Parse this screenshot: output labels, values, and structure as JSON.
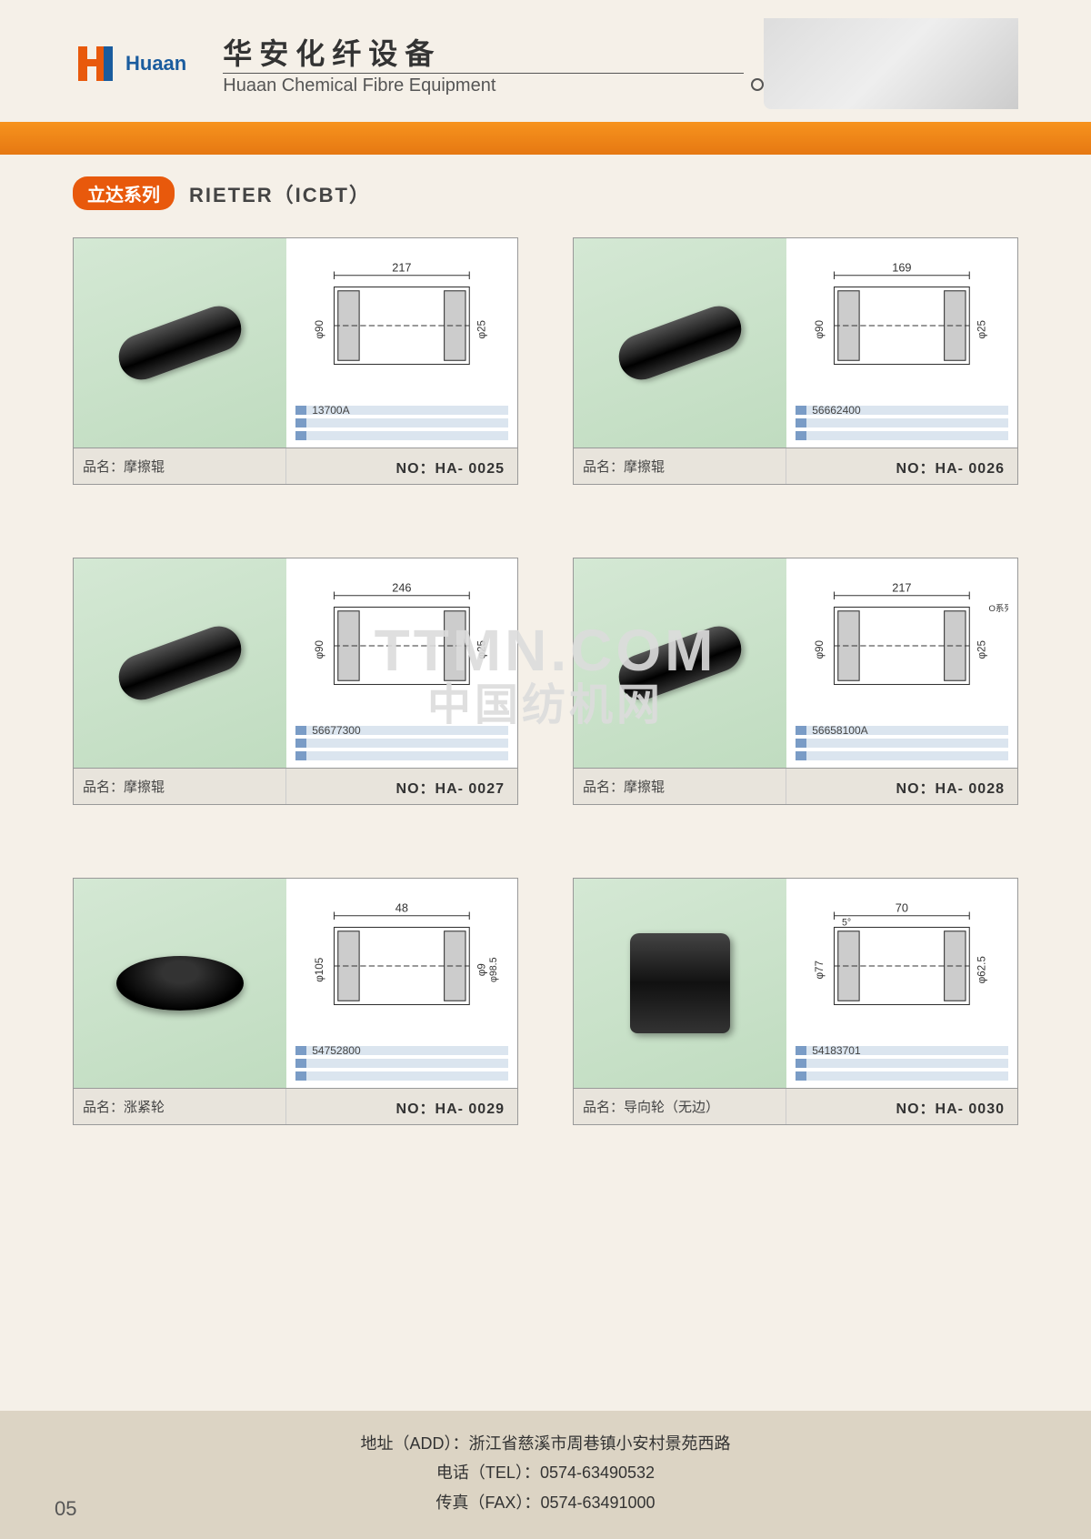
{
  "header": {
    "logo_text": "Huaan",
    "logo_color_primary": "#e8590c",
    "logo_color_secondary": "#1a5c9e",
    "title_cn": "华安化纤设备",
    "title_en": "Huaan Chemical Fibre Equipment"
  },
  "series": {
    "badge": "立达系列",
    "title": "RIETER（ICBT）"
  },
  "products": [
    {
      "name_label": "品名：摩擦辊",
      "part_no_label": "NO：HA- 0025",
      "code": "13700A",
      "shape": "roller",
      "dims": {
        "width": "217",
        "outer_dia": "φ90",
        "inner_dia": "φ25"
      }
    },
    {
      "name_label": "品名：摩擦辊",
      "part_no_label": "NO：HA- 0026",
      "code": "56662400",
      "shape": "roller",
      "dims": {
        "width": "169",
        "outer_dia": "φ90",
        "inner_dia": "φ25"
      }
    },
    {
      "name_label": "品名：摩擦辊",
      "part_no_label": "NO：HA- 0027",
      "code": "56677300",
      "shape": "roller",
      "dims": {
        "width": "246",
        "outer_dia": "φ90",
        "inner_dia": "φ25"
      }
    },
    {
      "name_label": "品名：摩擦辊",
      "part_no_label": "NO：HA- 0028",
      "code": "56658100A",
      "shape": "roller",
      "dims": {
        "width": "217",
        "outer_dia": "φ90",
        "inner_dia": "φ25",
        "note": "O系列"
      }
    },
    {
      "name_label": "品名：涨紧轮",
      "part_no_label": "NO：HA- 0029",
      "code": "54752800",
      "shape": "wheel_flat",
      "dims": {
        "width": "48",
        "outer_dia": "φ105",
        "inner_dia": "φ9",
        "other": "φ98.5"
      }
    },
    {
      "name_label": "品名：导向轮（无边）",
      "part_no_label": "NO：HA- 0030",
      "code": "54183701",
      "shape": "wheel_tall",
      "dims": {
        "width": "70",
        "outer_dia": "φ77",
        "inner_dia": "φ62.5",
        "angle": "5°"
      }
    }
  ],
  "footer": {
    "address_label": "地址（ADD）：",
    "address": "浙江省慈溪市周巷镇小安村景苑西路",
    "tel_label": "电话（TEL）：",
    "tel": "0574-63490532",
    "fax_label": "传真（FAX）：",
    "fax": "0574-63491000",
    "page_num": "05"
  },
  "watermark": {
    "line1": "TTMN.COM",
    "line2": "中国纺机网"
  },
  "colors": {
    "orange_bar": "#f7931e",
    "badge_bg": "#e8590c",
    "card_border": "#999999",
    "photo_bg": "#cfe4cf",
    "footer_bar": "#e8e4dc",
    "page_footer_bg": "#dcd4c4",
    "code_accent": "#7a9cc6"
  }
}
